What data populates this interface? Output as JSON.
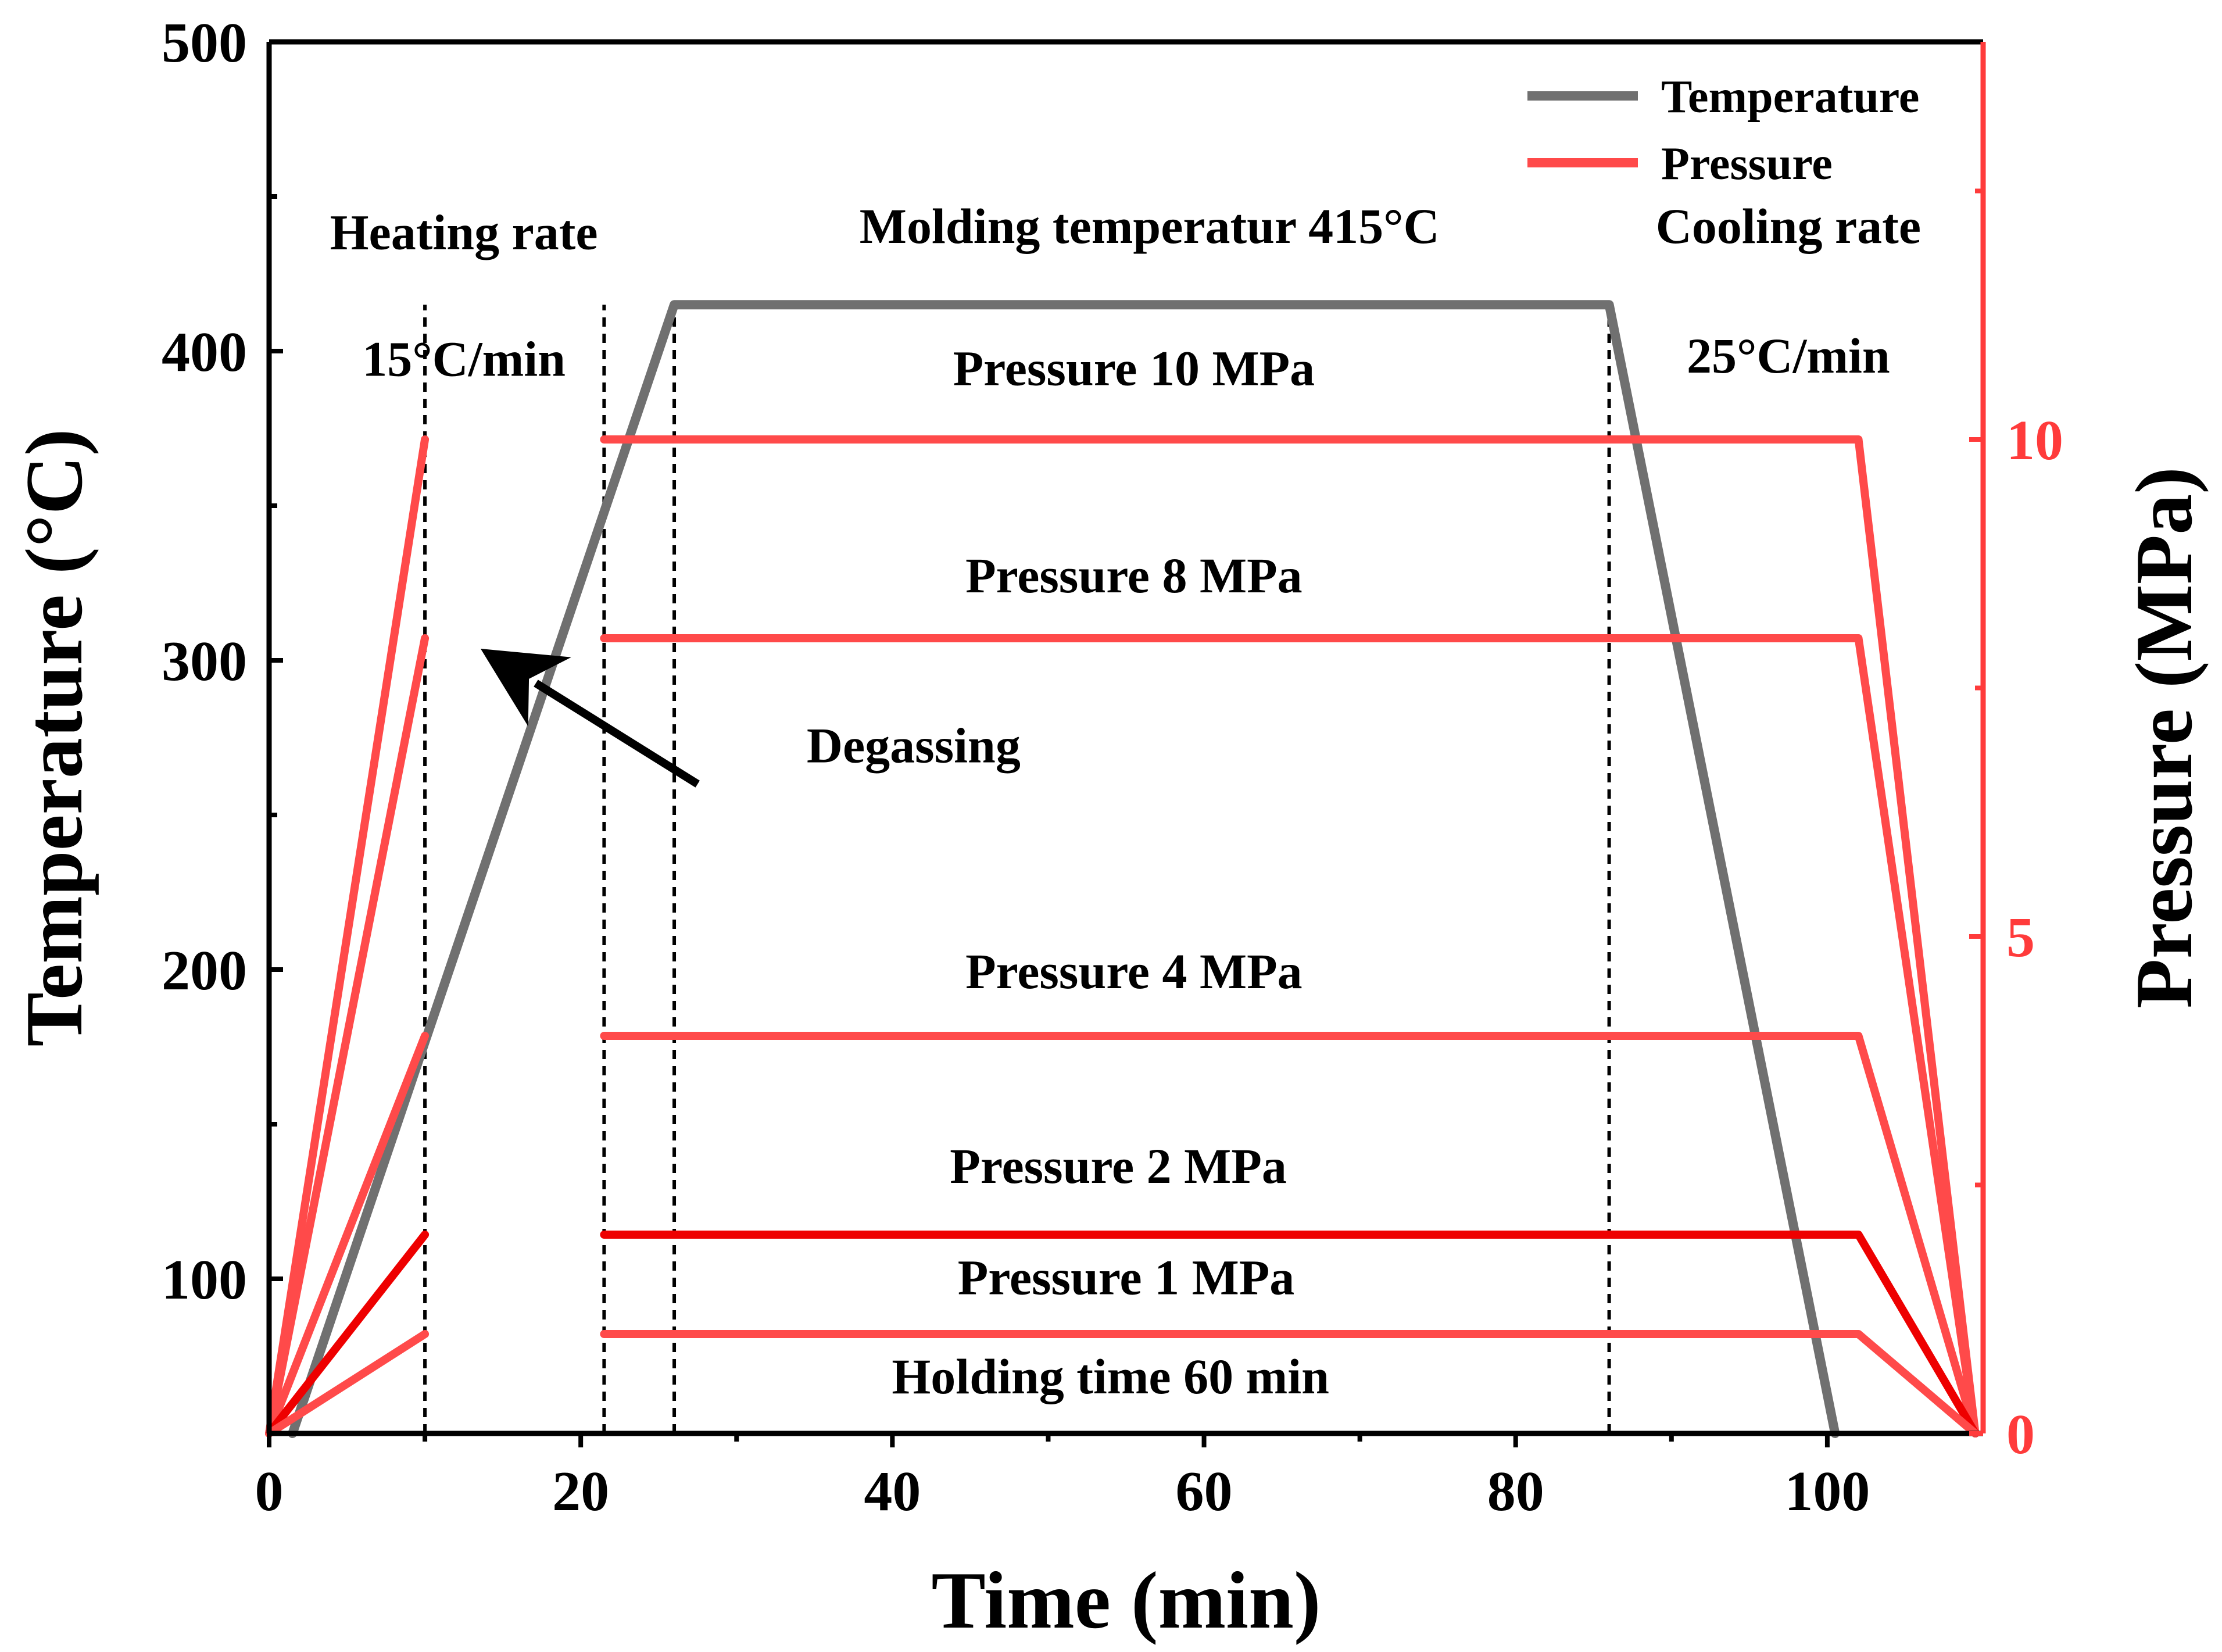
{
  "chart_data": {
    "type": "line",
    "title": "",
    "xlabel": "Time (min)",
    "ylabel": "Temperature (°C)",
    "y2label": "Pressure (MPa)",
    "xlim": [
      0,
      110
    ],
    "ylim": [
      50,
      500
    ],
    "y2lim": [
      0,
      14
    ],
    "x_ticks": [
      0,
      20,
      40,
      60,
      80,
      100
    ],
    "x_tick_labels": [
      "0",
      "20",
      "40",
      "60",
      "80",
      "100"
    ],
    "y_ticks": [
      100,
      200,
      300,
      400,
      500
    ],
    "y_tick_labels": [
      "100",
      "200",
      "300",
      "400",
      "500"
    ],
    "y2_ticks": [
      0,
      5,
      10
    ],
    "y2_tick_labels": [
      "0",
      "5",
      "10"
    ],
    "colors": {
      "temperature": "#707070",
      "pressure": "#ff4a4a",
      "pressure_2mpa": "#ee0000",
      "axis_right": "#ff3b3b",
      "axis": "#000000",
      "guide": "#000000"
    },
    "legend": {
      "position": "top-right",
      "items": [
        {
          "label": "Temperature",
          "color": "#707070"
        },
        {
          "label": "Pressure",
          "color": "#ff4a4a"
        }
      ]
    },
    "series": [
      {
        "name": "Temperature",
        "axis": "left",
        "x": [
          1.5,
          26,
          86,
          100.5
        ],
        "y": [
          50,
          415,
          415,
          50
        ]
      },
      {
        "name": "Pressure 10 MPa",
        "axis": "right",
        "segments": [
          {
            "x": [
              0,
              10
            ],
            "y": [
              0,
              10
            ]
          },
          {
            "x": [
              21.5,
              102,
              109.5
            ],
            "y": [
              10,
              10,
              0
            ]
          }
        ]
      },
      {
        "name": "Pressure 8 MPa",
        "axis": "right",
        "segments": [
          {
            "x": [
              0,
              10
            ],
            "y": [
              0,
              8
            ]
          },
          {
            "x": [
              21.5,
              102,
              109.5
            ],
            "y": [
              8,
              8,
              0
            ]
          }
        ]
      },
      {
        "name": "Pressure 4 MPa",
        "axis": "right",
        "segments": [
          {
            "x": [
              0,
              10
            ],
            "y": [
              0,
              4
            ]
          },
          {
            "x": [
              21.5,
              102,
              109.5
            ],
            "y": [
              4,
              4,
              0
            ]
          }
        ]
      },
      {
        "name": "Pressure 2 MPa",
        "axis": "right",
        "segments": [
          {
            "x": [
              0,
              10
            ],
            "y": [
              0,
              2
            ]
          },
          {
            "x": [
              21.5,
              102,
              109.5
            ],
            "y": [
              2,
              2,
              0
            ]
          }
        ]
      },
      {
        "name": "Pressure 1 MPa",
        "axis": "right",
        "segments": [
          {
            "x": [
              0,
              10
            ],
            "y": [
              0,
              1
            ]
          },
          {
            "x": [
              21.5,
              102,
              109.5
            ],
            "y": [
              1,
              1,
              0
            ]
          }
        ]
      }
    ],
    "guide_lines_x": [
      10,
      21.5,
      26,
      86
    ],
    "annotations": [
      {
        "id": "heating-rate",
        "text": "Heating rate",
        "x": 12.5,
        "y": 433
      },
      {
        "id": "heating-rate-value",
        "text": "15°C/min",
        "x": 12.5,
        "y": 392
      },
      {
        "id": "molding-temperature",
        "text": "Molding temperatur 415°C",
        "x": 56.5,
        "y": 435
      },
      {
        "id": "cooling-rate",
        "text": "Cooling rate",
        "x": 97.5,
        "y": 435
      },
      {
        "id": "cooling-rate-value",
        "text": "25°C/min",
        "x": 97.5,
        "y": 393
      },
      {
        "id": "label-10mpa",
        "text": "Pressure 10 MPa",
        "x": 55.5,
        "y": 389
      },
      {
        "id": "label-8mpa",
        "text": "Pressure 8 MPa",
        "x": 55.5,
        "y": 322
      },
      {
        "id": "label-4mpa",
        "text": "Pressure 4 MPa",
        "x": 55.5,
        "y": 194
      },
      {
        "id": "label-2mpa",
        "text": "Pressure 2 MPa",
        "x": 54.5,
        "y": 131
      },
      {
        "id": "label-1mpa",
        "text": "Pressure 1 MPa",
        "x": 55,
        "y": 95
      },
      {
        "id": "holding-time",
        "text": "Holding time 60 min",
        "x": 54,
        "y": 63
      },
      {
        "id": "degassing",
        "text": "Degassing",
        "x": 34.5,
        "y": 267
      }
    ],
    "arrow": {
      "label": "Degassing",
      "from": [
        27.5,
        260
      ],
      "to": [
        16,
        296
      ]
    }
  }
}
